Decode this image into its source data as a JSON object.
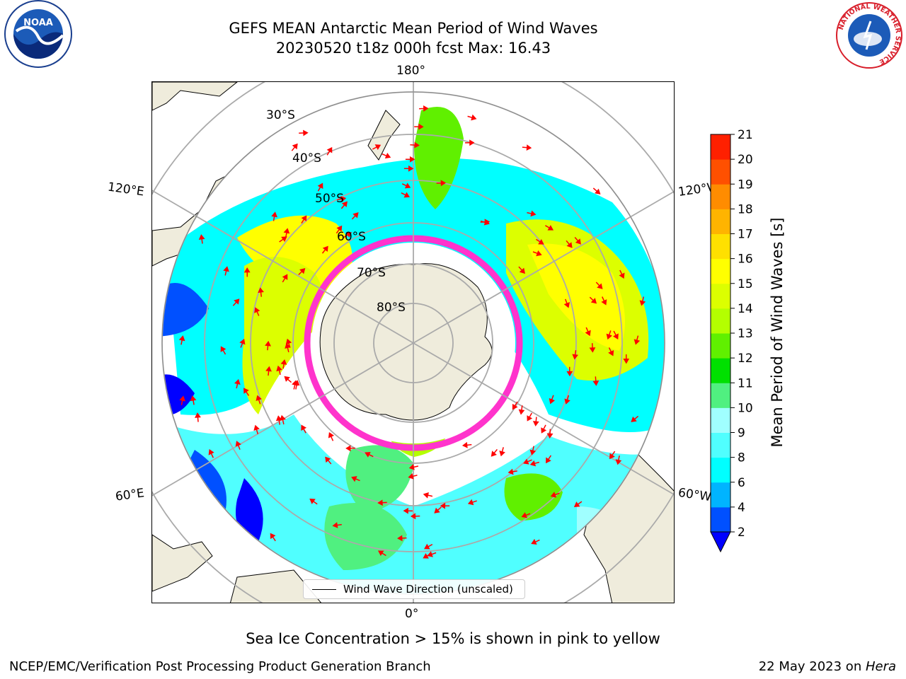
{
  "title": {
    "line1": "GEFS MEAN Antarctic Mean Period of Wind Waves",
    "line2": "20230520 t18z 000h fcst   Max: 16.43"
  },
  "logos": {
    "left": "NOAA",
    "right": "NATIONAL WEATHER SERVICE"
  },
  "map": {
    "projection": "south-polar-stereographic",
    "lon_labels": {
      "top": "180°",
      "bottom": "0°",
      "left_upper": "120°E",
      "left_lower": "60°E",
      "right_upper": "120°W",
      "right_lower": "60°W"
    },
    "lat_labels": [
      "30°S",
      "40°S",
      "50°S",
      "60°S",
      "70°S",
      "80°S"
    ],
    "land_color": "#efecdc",
    "ice_edge_color": "#ff33cc"
  },
  "legend": {
    "label": "Wind Wave Direction (unscaled)"
  },
  "colorbar": {
    "label": "Mean Period of Wind Waves [s]",
    "ticks": [
      "2",
      "4",
      "6",
      "8",
      "9",
      "10",
      "11",
      "12",
      "13",
      "14",
      "15",
      "16",
      "17",
      "18",
      "19",
      "20",
      "21"
    ],
    "colors": [
      "#0050ff",
      "#00b4ff",
      "#00ffff",
      "#50ffff",
      "#a0ffff",
      "#50f080",
      "#00e000",
      "#60f000",
      "#b4ff00",
      "#dcff00",
      "#ffff00",
      "#ffe000",
      "#ffb400",
      "#ff8c00",
      "#ff5000",
      "#ff2000"
    ],
    "under_color": "#0000ff"
  },
  "caption": "Sea Ice Concentration > 15% is shown in pink to yellow",
  "footer": {
    "left": "NCEP/EMC/Verification Post Processing Product Generation Branch",
    "right_prefix": "22 May 2023 on ",
    "right_italic": "Hera"
  }
}
